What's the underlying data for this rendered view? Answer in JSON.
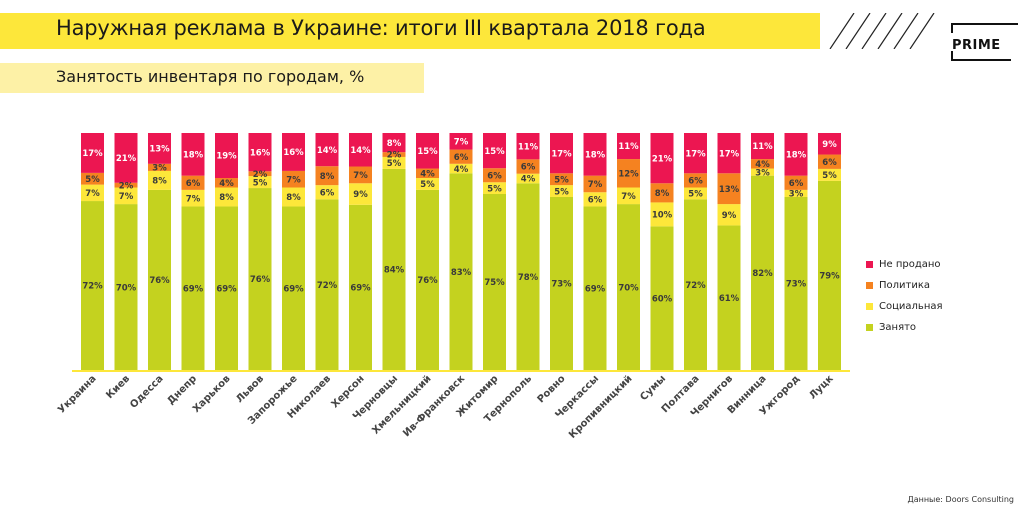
{
  "header": {
    "title": "Наружная реклама в Украине: итоги III квартала 2018 года",
    "subtitle": "Занятость инвентаря по городам, %",
    "logo": "PRIME",
    "source": "Данные: Doors Consulting"
  },
  "colors": {
    "sold": "#c4d21f",
    "social": "#fde73a",
    "politics": "#f58220",
    "unsold": "#ec1651",
    "title_band": "#fde73a",
    "subtitle_band": "#fdf1a6"
  },
  "chart_data": {
    "type": "bar",
    "stacked": true,
    "title": "Занятость инвентаря по городам, %",
    "ylim": [
      0,
      100
    ],
    "legend_position": "right",
    "categories": [
      "Украина",
      "Киев",
      "Одесса",
      "Днепр",
      "Харьков",
      "Львов",
      "Запорожье",
      "Николаев",
      "Херсон",
      "Черновцы",
      "Хмельницкий",
      "Ив-Франковск",
      "Житомир",
      "Тернополь",
      "Ровно",
      "Черкассы",
      "Кропивницкий",
      "Сумы",
      "Полтава",
      "Чернигов",
      "Винница",
      "Ужгород",
      "Луцк"
    ],
    "series": [
      {
        "name": "Занято",
        "key": "sold",
        "values": [
          72,
          70,
          76,
          69,
          69,
          76,
          69,
          72,
          69,
          84,
          76,
          83,
          75,
          78,
          73,
          69,
          70,
          60,
          72,
          61,
          82,
          73,
          79
        ]
      },
      {
        "name": "Социальная",
        "key": "social",
        "values": [
          7,
          7,
          8,
          7,
          8,
          5,
          8,
          6,
          9,
          5,
          5,
          4,
          5,
          4,
          5,
          6,
          7,
          10,
          5,
          9,
          3,
          3,
          5
        ]
      },
      {
        "name": "Политика",
        "key": "politics",
        "values": [
          5,
          2,
          3,
          6,
          4,
          2,
          7,
          8,
          7,
          2,
          4,
          6,
          6,
          6,
          5,
          7,
          12,
          8,
          6,
          13,
          4,
          6,
          6
        ]
      },
      {
        "name": "Не продано",
        "key": "unsold",
        "values": [
          17,
          21,
          13,
          18,
          19,
          16,
          16,
          14,
          14,
          8,
          15,
          7,
          15,
          11,
          17,
          18,
          11,
          21,
          17,
          17,
          11,
          18,
          9
        ]
      }
    ],
    "legend_order": [
      "Не продано",
      "Политика",
      "Социальная",
      "Занято"
    ]
  }
}
